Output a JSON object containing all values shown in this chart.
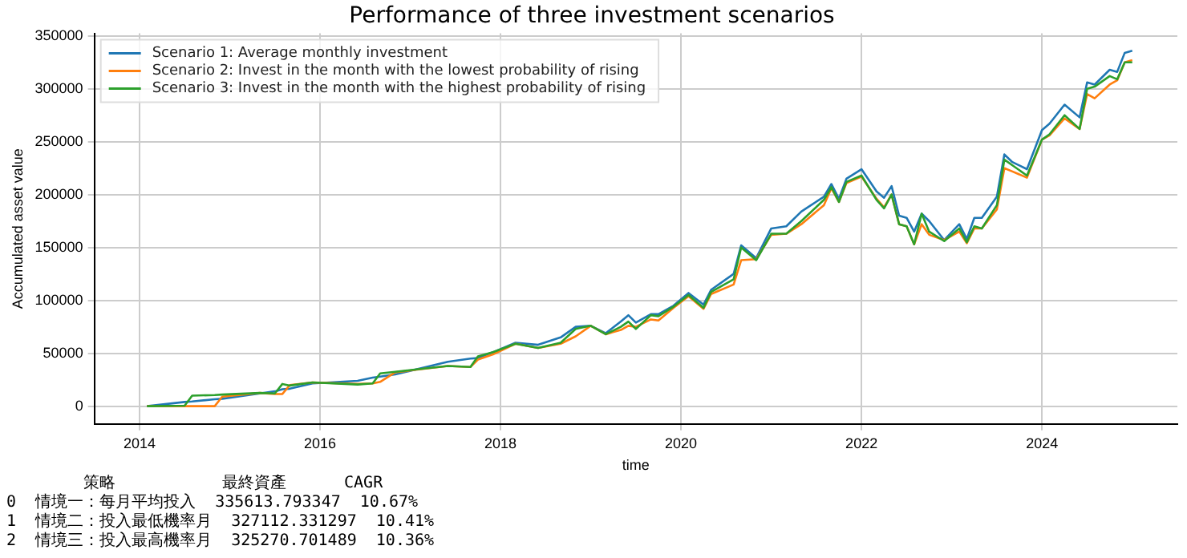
{
  "chart_data": {
    "type": "line",
    "title": "Performance of three investment scenarios",
    "xlabel": "time",
    "ylabel": "Accumulated asset value",
    "x": [
      "2014-02",
      "2014-07",
      "2014-08",
      "2014-11",
      "2014-12",
      "2015-05",
      "2015-07",
      "2015-08",
      "2015-09",
      "2015-12",
      "2016-06",
      "2016-08",
      "2016-09",
      "2016-11",
      "2017-06",
      "2017-09",
      "2017-10",
      "2017-12",
      "2018-03",
      "2018-06",
      "2018-09",
      "2018-11",
      "2019-01",
      "2019-03",
      "2019-05",
      "2019-06",
      "2019-07",
      "2019-09",
      "2019-10",
      "2019-12",
      "2020-02",
      "2020-04",
      "2020-05",
      "2020-08",
      "2020-09",
      "2020-11",
      "2021-01",
      "2021-03",
      "2021-05",
      "2021-08",
      "2021-09",
      "2021-10",
      "2021-11",
      "2022-01",
      "2022-03",
      "2022-04",
      "2022-05",
      "2022-06",
      "2022-07",
      "2022-08",
      "2022-09",
      "2022-10",
      "2022-12",
      "2023-02",
      "2023-03",
      "2023-04",
      "2023-05",
      "2023-07",
      "2023-08",
      "2023-09",
      "2023-11",
      "2024-01",
      "2024-02",
      "2024-04",
      "2024-06",
      "2024-07",
      "2024-08",
      "2024-10",
      "2024-11",
      "2024-12",
      "2025-01"
    ],
    "series": [
      {
        "name": "Scenario 1: Average monthly investment",
        "color": "#1f77b4",
        "values": [
          0,
          4000,
          4500,
          6500,
          7000,
          12000,
          14000,
          16000,
          16500,
          21500,
          24000,
          27000,
          28000,
          30000,
          42000,
          45000,
          45500,
          51000,
          60000,
          58000,
          65000,
          75000,
          76000,
          69000,
          80000,
          86000,
          79000,
          87000,
          87000,
          95000,
          107000,
          96000,
          110000,
          125000,
          152000,
          140000,
          168000,
          170000,
          184000,
          198000,
          210000,
          196000,
          215000,
          224000,
          203000,
          197000,
          208000,
          180000,
          178000,
          165000,
          182000,
          175000,
          157000,
          172000,
          158000,
          178000,
          178000,
          198000,
          238000,
          231000,
          224000,
          261000,
          267000,
          285000,
          273000,
          306000,
          304000,
          318000,
          316000,
          334000,
          336000
        ]
      },
      {
        "name": "Scenario 2: Invest in the month with the lowest probability of rising",
        "color": "#ff7f0e",
        "values": [
          0,
          0,
          0,
          0,
          9000,
          12500,
          11500,
          11500,
          20000,
          22500,
          21000,
          21500,
          23000,
          32000,
          38000,
          37000,
          44000,
          49000,
          59000,
          55000,
          59000,
          66000,
          76000,
          68000,
          72000,
          76000,
          75000,
          82000,
          81000,
          93000,
          104000,
          92000,
          106000,
          115000,
          138000,
          139000,
          162000,
          163000,
          172000,
          190000,
          206000,
          193000,
          211000,
          217000,
          196000,
          188000,
          200000,
          172000,
          170000,
          153000,
          172000,
          162000,
          157000,
          165000,
          154000,
          168000,
          168000,
          186000,
          225000,
          222000,
          216000,
          252000,
          256000,
          272000,
          262000,
          295000,
          291000,
          304000,
          308000,
          325000,
          327000
        ]
      },
      {
        "name": "Scenario 3: Invest in the month with the highest probability of rising",
        "color": "#2ca02c",
        "values": [
          0,
          500,
          10000,
          10500,
          11000,
          12500,
          12000,
          21000,
          19500,
          22500,
          20500,
          21500,
          31000,
          32500,
          38000,
          37000,
          47000,
          51000,
          59000,
          55000,
          60000,
          73000,
          76000,
          68000,
          75000,
          80000,
          73000,
          86000,
          85000,
          94000,
          105000,
          93000,
          108000,
          120000,
          150000,
          138000,
          163000,
          163000,
          175000,
          195000,
          207000,
          193000,
          212000,
          218000,
          195000,
          187000,
          200000,
          172000,
          170000,
          153000,
          182000,
          165000,
          156000,
          168000,
          155000,
          170000,
          168000,
          190000,
          233000,
          228000,
          218000,
          252000,
          257000,
          275000,
          262000,
          300000,
          302000,
          312000,
          309000,
          325000,
          325000
        ]
      }
    ],
    "xlim": [
      "2013-07",
      "2025-07"
    ],
    "xticks": [
      "2014",
      "2016",
      "2018",
      "2020",
      "2022",
      "2024"
    ],
    "ylim": [
      -16800,
      352400
    ],
    "yticks": [
      0,
      50000,
      100000,
      150000,
      200000,
      250000,
      300000,
      350000
    ],
    "grid": true,
    "legend": "top left",
    "marker": "none",
    "line_style": "solid",
    "annotations": [
      "        策略           最終資產      CAGR",
      "0  情境一：每月平均投入  335613.793347  10.67%",
      "1  情境二：投入最低機率月  327112.331297  10.41%",
      "2  情境三：投入最高機率月  325270.701489  10.36%"
    ]
  }
}
